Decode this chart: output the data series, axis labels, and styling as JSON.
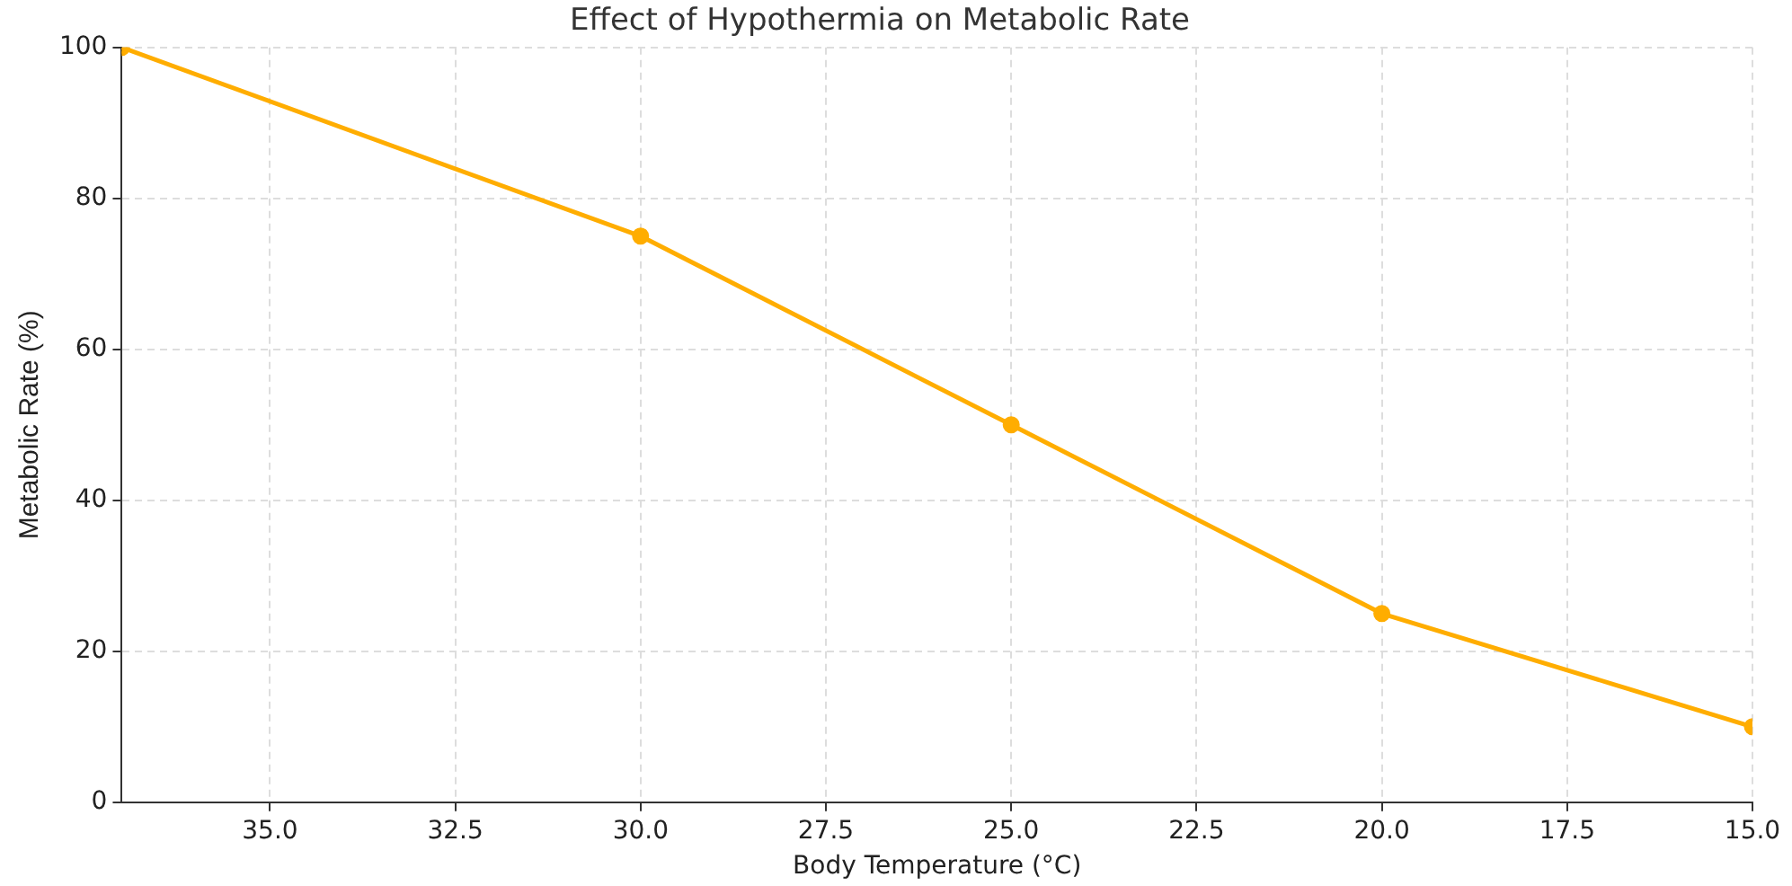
{
  "chart_data": {
    "type": "line",
    "title": "Effect of Hypothermia on Metabolic Rate",
    "xlabel": "Body Temperature (°C)",
    "ylabel": "Metabolic Rate (%)",
    "x": [
      37,
      30,
      25,
      20,
      15
    ],
    "series": [
      {
        "color": "#ffad00",
        "values": [
          100,
          75,
          50,
          25,
          10
        ]
      }
    ],
    "xlim": [
      37,
      15
    ],
    "xticks": [
      {
        "value": 35,
        "label": "35.0"
      },
      {
        "value": 32.5,
        "label": "32.5"
      },
      {
        "value": 30,
        "label": "30.0"
      },
      {
        "value": 27.5,
        "label": "27.5"
      },
      {
        "value": 25,
        "label": "25.0"
      },
      {
        "value": 22.5,
        "label": "22.5"
      },
      {
        "value": 20,
        "label": "20.0"
      },
      {
        "value": 17.5,
        "label": "17.5"
      },
      {
        "value": 15,
        "label": "15.0"
      }
    ],
    "ylim": [
      0,
      100
    ],
    "yticks": [
      0,
      20,
      40,
      60,
      80,
      100
    ],
    "grid": true,
    "marker": "circle",
    "line_style": "solid",
    "legend": false
  }
}
